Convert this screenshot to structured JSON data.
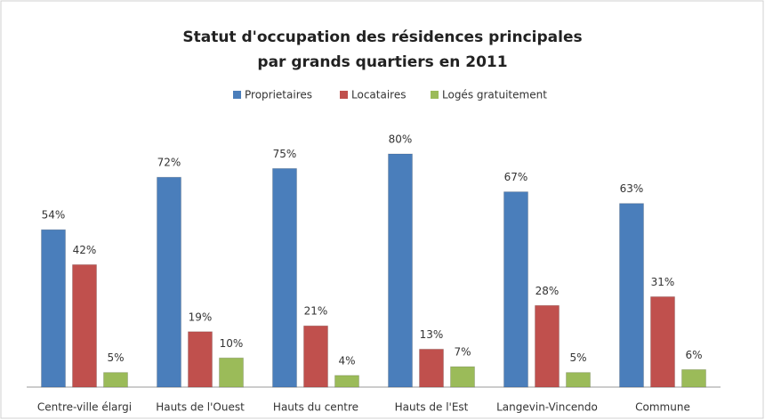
{
  "chart_data": {
    "type": "bar",
    "title": [
      "Statut d'occupation des résidences principales",
      "par grands quartiers en 2011"
    ],
    "categories": [
      "Centre-ville élargi",
      "Hauts de l'Ouest",
      "Hauts du centre",
      "Hauts de l'Est",
      "Langevin-Vincendo",
      "Commune"
    ],
    "series": [
      {
        "name": "Proprietaires",
        "color": "#4a7ebb",
        "values": [
          54,
          72,
          75,
          80,
          67,
          63
        ],
        "value_labels": [
          "54%",
          "72%",
          "75%",
          "80%",
          "67%",
          "63%"
        ]
      },
      {
        "name": "Locataires",
        "color": "#c0504d",
        "values": [
          42,
          19,
          21,
          13,
          28,
          31
        ],
        "value_labels": [
          "42%",
          "19%",
          "21%",
          "13%",
          "28%",
          "31%"
        ]
      },
      {
        "name": "Logés gratuitement",
        "color": "#9bbb59",
        "values": [
          5,
          10,
          4,
          7,
          5,
          6
        ],
        "value_labels": [
          "5%",
          "10%",
          "4%",
          "7%",
          "5%",
          "6%"
        ]
      }
    ],
    "legend": "top"
  }
}
